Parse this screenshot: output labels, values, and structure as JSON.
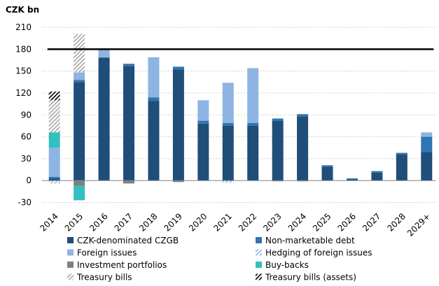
{
  "chart_data": {
    "type": "stacked_bar",
    "y_label": "CZK bn",
    "categories": [
      "2014",
      "2015",
      "2016",
      "2017",
      "2018",
      "2019",
      "2020",
      "2021",
      "2022",
      "2023",
      "2024",
      "2025",
      "2026",
      "2027",
      "2028",
      "2029+"
    ],
    "series": [
      {
        "name": "CZK-denominated CZGB",
        "color": "#1f4e79",
        "hatched": false,
        "values": [
          3,
          135,
          168,
          157,
          109,
          152,
          78,
          75,
          75,
          82,
          88,
          19,
          2,
          11,
          36,
          39
        ]
      },
      {
        "name": "Non-marketable debt",
        "color": "#2e75b6",
        "hatched": false,
        "values": [
          2,
          3,
          1,
          3,
          5,
          4,
          4,
          4,
          4,
          3,
          3,
          2,
          1,
          2,
          2,
          21
        ]
      },
      {
        "name": "Foreign issues",
        "color": "#8db4e2",
        "hatched": false,
        "values": [
          40,
          10,
          12,
          0,
          55,
          0,
          28,
          55,
          75,
          0,
          0,
          0,
          0,
          0,
          0,
          6
        ]
      },
      {
        "name": "Hedging of foreign issues",
        "color": "#8db4e2",
        "hatched": true,
        "values": [
          -4,
          0,
          0,
          0,
          0,
          0,
          0,
          -3,
          0,
          0,
          0,
          0,
          0,
          0,
          0,
          0
        ]
      },
      {
        "name": "Investment portfolios",
        "color": "#7f7f7f",
        "hatched": false,
        "values": [
          0,
          -7,
          0,
          -4,
          0,
          -2,
          0,
          0,
          0,
          -1,
          -1,
          0,
          0,
          0,
          0,
          0
        ]
      },
      {
        "name": "Buy-backs",
        "color": "#33bfbf",
        "hatched": false,
        "values": [
          21,
          -20,
          0,
          0,
          0,
          0,
          0,
          0,
          0,
          0,
          0,
          0,
          0,
          0,
          0,
          0
        ]
      },
      {
        "name": "Treasury bills",
        "color": "#a6a6a6",
        "hatched": true,
        "values": [
          44,
          53,
          0,
          0,
          0,
          0,
          0,
          0,
          0,
          0,
          0,
          0,
          0,
          0,
          0,
          0
        ]
      },
      {
        "name": "Treasury bills (assets)",
        "color": "#000000",
        "hatched": true,
        "values": [
          12,
          0,
          0,
          0,
          0,
          0,
          0,
          0,
          0,
          0,
          0,
          0,
          0,
          0,
          0,
          0
        ]
      }
    ],
    "ylim": [
      -40,
      210
    ],
    "yticks": [
      -30,
      0,
      30,
      60,
      90,
      120,
      150,
      180,
      210
    ],
    "grid": true,
    "reference_line": {
      "value": 180,
      "color": "#000000"
    }
  }
}
